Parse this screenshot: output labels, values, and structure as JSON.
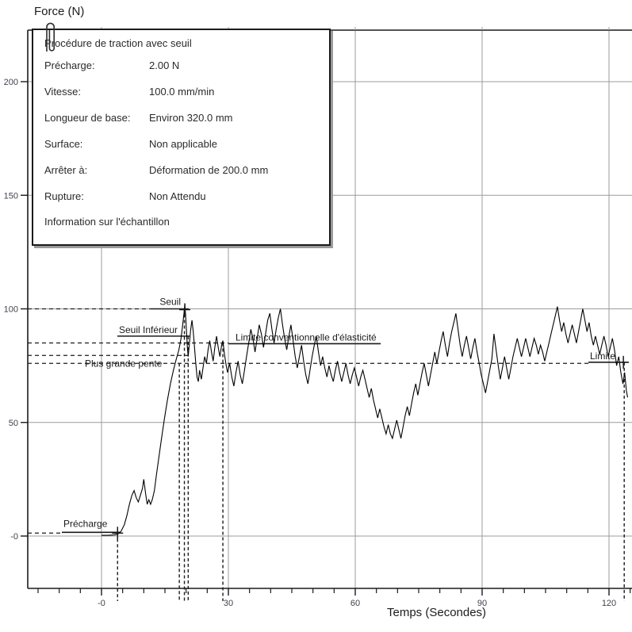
{
  "chart_data": {
    "type": "line",
    "title": "",
    "xlabel": "Temps (Secondes)",
    "ylabel": "Force (N)",
    "xlim": [
      -17.5,
      125.5
    ],
    "ylim": [
      -23.5,
      223
    ],
    "grid": true,
    "legend": "none",
    "x_ticks": [
      0,
      30,
      60,
      90,
      120
    ],
    "x_tick_labels": [
      "-0",
      "30",
      "60",
      "90",
      "120"
    ],
    "x_minor_step_s": 5,
    "y_ticks": [
      0,
      50,
      100,
      150,
      200
    ],
    "y_tick_labels": [
      "-0",
      "50",
      "100",
      "150",
      "200"
    ],
    "annotations": {
      "seuil": {
        "label": "Seuil",
        "force": 100
      },
      "seuil_inferieur": {
        "label": "Seuil Inférieur",
        "force": 88
      },
      "limite_elasticite": {
        "label": "Limite conventionnelle d'élasticité",
        "force": 85
      },
      "plus_grande_pente": {
        "label": "Plus grande pente",
        "force": 76
      },
      "limite": {
        "label": "Limite",
        "force": 76.5
      },
      "precharge": {
        "label": "Précharge",
        "force": 1.3
      }
    },
    "unlabeled_guide_force": 79.5,
    "event_times_s": [
      3.8,
      18.4,
      19.6,
      20.5,
      28.7,
      123.6
    ],
    "series": [
      {
        "name": "force-vs-temps",
        "points": [
          [
            0,
            0.3
          ],
          [
            1.5,
            0.3
          ],
          [
            3,
            0.5
          ],
          [
            3.8,
            0.8
          ],
          [
            4.6,
            2
          ],
          [
            5.4,
            5
          ],
          [
            6,
            9
          ],
          [
            6.6,
            14
          ],
          [
            7.2,
            18
          ],
          [
            7.7,
            20
          ],
          [
            8.2,
            17
          ],
          [
            8.7,
            15
          ],
          [
            9.2,
            18
          ],
          [
            9.7,
            21
          ],
          [
            10,
            25
          ],
          [
            10.4,
            19
          ],
          [
            10.8,
            14
          ],
          [
            11.2,
            16
          ],
          [
            11.6,
            14
          ],
          [
            12,
            16
          ],
          [
            12.5,
            20
          ],
          [
            13,
            27
          ],
          [
            13.6,
            35
          ],
          [
            14.2,
            43
          ],
          [
            14.9,
            52
          ],
          [
            15.6,
            60
          ],
          [
            16.3,
            67
          ],
          [
            17,
            73
          ],
          [
            17.7,
            78
          ],
          [
            18.3,
            82
          ],
          [
            18.8,
            87
          ],
          [
            19.2,
            93
          ],
          [
            19.5,
            98
          ],
          [
            19.7,
            102
          ],
          [
            19.9,
            97
          ],
          [
            20.1,
            90
          ],
          [
            20.3,
            83
          ],
          [
            20.5,
            79
          ],
          [
            20.8,
            85
          ],
          [
            21.1,
            91
          ],
          [
            21.4,
            95
          ],
          [
            21.7,
            90
          ],
          [
            22,
            83
          ],
          [
            22.3,
            76
          ],
          [
            22.6,
            70
          ],
          [
            22.9,
            68
          ],
          [
            23.2,
            73
          ],
          [
            23.6,
            69
          ],
          [
            24,
            74
          ],
          [
            24.4,
            79
          ],
          [
            24.8,
            76
          ],
          [
            25.2,
            82
          ],
          [
            25.6,
            86
          ],
          [
            26,
            81
          ],
          [
            26.4,
            77
          ],
          [
            26.8,
            83
          ],
          [
            27.2,
            88
          ],
          [
            27.6,
            83
          ],
          [
            28,
            79
          ],
          [
            28.4,
            84
          ],
          [
            28.7,
            86
          ],
          [
            29,
            81
          ],
          [
            29.4,
            76
          ],
          [
            29.8,
            72
          ],
          [
            30.3,
            76
          ],
          [
            30.8,
            70
          ],
          [
            31.3,
            66
          ],
          [
            31.8,
            72
          ],
          [
            32.3,
            77
          ],
          [
            32.8,
            71
          ],
          [
            33.3,
            67
          ],
          [
            33.8,
            73
          ],
          [
            34.3,
            79
          ],
          [
            34.8,
            85
          ],
          [
            35.3,
            91
          ],
          [
            35.8,
            87
          ],
          [
            36.3,
            81
          ],
          [
            36.8,
            87
          ],
          [
            37.3,
            93
          ],
          [
            37.8,
            89
          ],
          [
            38.3,
            83
          ],
          [
            38.8,
            89
          ],
          [
            39.3,
            95
          ],
          [
            39.8,
            98
          ],
          [
            40.3,
            91
          ],
          [
            40.8,
            85
          ],
          [
            41.3,
            91
          ],
          [
            41.8,
            96
          ],
          [
            42.3,
            100
          ],
          [
            42.8,
            93
          ],
          [
            43.3,
            87
          ],
          [
            43.8,
            82
          ],
          [
            44.3,
            88
          ],
          [
            44.8,
            93
          ],
          [
            45.3,
            86
          ],
          [
            45.8,
            79
          ],
          [
            46.3,
            74
          ],
          [
            46.8,
            79
          ],
          [
            47.3,
            84
          ],
          [
            47.8,
            77
          ],
          [
            48.3,
            71
          ],
          [
            48.8,
            67
          ],
          [
            49.3,
            73
          ],
          [
            49.8,
            79
          ],
          [
            50.3,
            84
          ],
          [
            50.8,
            88
          ],
          [
            51.3,
            81
          ],
          [
            51.8,
            75
          ],
          [
            52.3,
            79
          ],
          [
            52.8,
            74
          ],
          [
            53.3,
            70
          ],
          [
            53.8,
            75
          ],
          [
            54.3,
            71
          ],
          [
            54.8,
            68
          ],
          [
            55.3,
            73
          ],
          [
            55.8,
            77
          ],
          [
            56.3,
            72
          ],
          [
            56.8,
            68
          ],
          [
            57.3,
            72
          ],
          [
            57.8,
            76
          ],
          [
            58.3,
            71
          ],
          [
            58.8,
            67
          ],
          [
            59.3,
            71
          ],
          [
            59.8,
            74
          ],
          [
            60.3,
            70
          ],
          [
            60.8,
            66
          ],
          [
            61.3,
            70
          ],
          [
            61.8,
            73
          ],
          [
            62.3,
            69
          ],
          [
            62.8,
            65
          ],
          [
            63.3,
            61
          ],
          [
            63.8,
            65
          ],
          [
            64.3,
            60
          ],
          [
            64.8,
            56
          ],
          [
            65.3,
            52
          ],
          [
            65.8,
            56
          ],
          [
            66.3,
            52
          ],
          [
            66.8,
            48
          ],
          [
            67.3,
            45
          ],
          [
            67.8,
            49
          ],
          [
            68.3,
            45
          ],
          [
            68.8,
            43
          ],
          [
            69.3,
            47
          ],
          [
            69.8,
            51
          ],
          [
            70.3,
            47
          ],
          [
            70.8,
            43
          ],
          [
            71.3,
            48
          ],
          [
            71.8,
            53
          ],
          [
            72.3,
            57
          ],
          [
            72.8,
            53
          ],
          [
            73.3,
            58
          ],
          [
            73.8,
            63
          ],
          [
            74.3,
            67
          ],
          [
            74.8,
            62
          ],
          [
            75.3,
            67
          ],
          [
            75.8,
            72
          ],
          [
            76.3,
            76
          ],
          [
            76.8,
            71
          ],
          [
            77.3,
            66
          ],
          [
            77.8,
            71
          ],
          [
            78.3,
            76
          ],
          [
            78.8,
            81
          ],
          [
            79.3,
            76
          ],
          [
            79.8,
            81
          ],
          [
            80.3,
            86
          ],
          [
            80.8,
            90
          ],
          [
            81.3,
            84
          ],
          [
            81.8,
            79
          ],
          [
            82.3,
            85
          ],
          [
            82.8,
            90
          ],
          [
            83.3,
            94
          ],
          [
            83.8,
            98
          ],
          [
            84.3,
            91
          ],
          [
            84.8,
            84
          ],
          [
            85.3,
            79
          ],
          [
            85.8,
            84
          ],
          [
            86.3,
            88
          ],
          [
            86.8,
            83
          ],
          [
            87.3,
            78
          ],
          [
            87.8,
            83
          ],
          [
            88.3,
            87
          ],
          [
            88.8,
            81
          ],
          [
            89.3,
            76
          ],
          [
            89.8,
            71
          ],
          [
            90.3,
            67
          ],
          [
            90.8,
            63
          ],
          [
            91.3,
            68
          ],
          [
            91.8,
            73
          ],
          [
            92.3,
            78
          ],
          [
            92.8,
            89
          ],
          [
            93.3,
            82
          ],
          [
            93.8,
            75
          ],
          [
            94.3,
            69
          ],
          [
            94.8,
            74
          ],
          [
            95.3,
            79
          ],
          [
            95.8,
            74
          ],
          [
            96.3,
            69
          ],
          [
            96.8,
            74
          ],
          [
            97.3,
            79
          ],
          [
            97.8,
            83
          ],
          [
            98.3,
            87
          ],
          [
            98.8,
            83
          ],
          [
            99.3,
            79
          ],
          [
            99.8,
            83
          ],
          [
            100.3,
            87
          ],
          [
            100.8,
            83
          ],
          [
            101.3,
            79
          ],
          [
            101.8,
            83
          ],
          [
            102.3,
            87
          ],
          [
            102.8,
            84
          ],
          [
            103.3,
            80
          ],
          [
            103.8,
            84
          ],
          [
            104.3,
            81
          ],
          [
            104.8,
            77
          ],
          [
            105.3,
            81
          ],
          [
            105.8,
            85
          ],
          [
            106.3,
            89
          ],
          [
            106.8,
            93
          ],
          [
            107.3,
            97
          ],
          [
            107.8,
            101
          ],
          [
            108.3,
            95
          ],
          [
            108.8,
            90
          ],
          [
            109.3,
            94
          ],
          [
            109.8,
            89
          ],
          [
            110.3,
            85
          ],
          [
            110.8,
            89
          ],
          [
            111.3,
            93
          ],
          [
            111.8,
            89
          ],
          [
            112.3,
            85
          ],
          [
            112.8,
            90
          ],
          [
            113.3,
            95
          ],
          [
            113.8,
            100
          ],
          [
            114.3,
            95
          ],
          [
            114.8,
            90
          ],
          [
            115.3,
            94
          ],
          [
            115.8,
            88
          ],
          [
            116.3,
            84
          ],
          [
            116.8,
            88
          ],
          [
            117.3,
            84
          ],
          [
            117.8,
            80
          ],
          [
            118.3,
            84
          ],
          [
            118.8,
            88
          ],
          [
            119.3,
            84
          ],
          [
            119.8,
            79
          ],
          [
            120.3,
            83
          ],
          [
            120.8,
            87
          ],
          [
            121.3,
            82
          ],
          [
            121.8,
            75
          ],
          [
            122.3,
            79
          ],
          [
            122.8,
            72
          ],
          [
            123.3,
            67
          ],
          [
            123.7,
            72
          ],
          [
            124.1,
            64
          ],
          [
            124.4,
            61
          ]
        ]
      }
    ]
  },
  "infobox": {
    "title": "Procédure de traction avec seuil",
    "rows": [
      {
        "label": "Précharge:",
        "value": "2.00 N"
      },
      {
        "label": "Vitesse:",
        "value": "100.0 mm/min"
      },
      {
        "label": "Longueur de base:",
        "value": "Environ 320.0 mm"
      },
      {
        "label": "Surface:",
        "value": "Non applicable"
      },
      {
        "label": "Arrêter à:",
        "value": "Déformation de 200.0 mm"
      },
      {
        "label": "Rupture:",
        "value": "Non Attendu"
      }
    ],
    "footer": "Information sur l'échantillon"
  },
  "colors": {
    "grid": "#9c9c9c",
    "axis": "#1a1a1a",
    "curve": "#000000",
    "annotation": "#1a1a1a",
    "tick_label": "#3f434d"
  }
}
